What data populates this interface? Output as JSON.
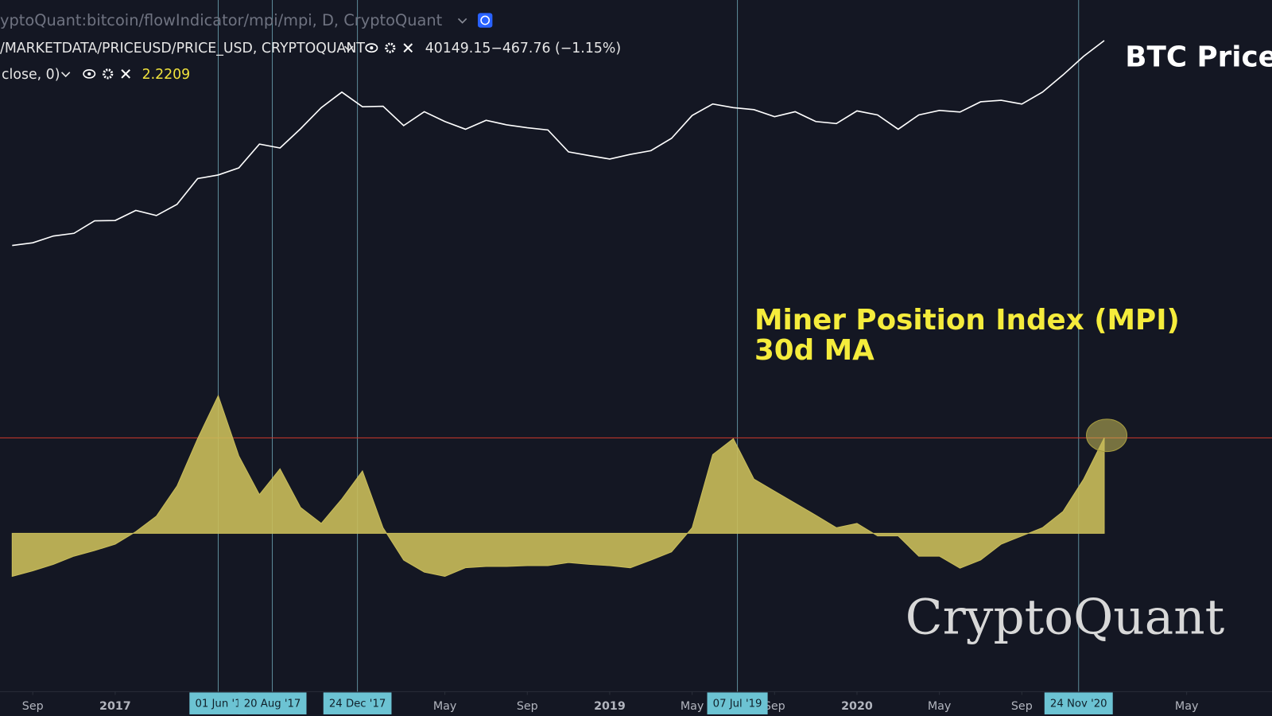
{
  "header": {
    "source": "yptoQuant:bitcoin/flowIndicator/mpi/mpi, D, CryptoQuant",
    "price_source": "/MARKETDATA/PRICEUSD/PRICE_USD, CRYPTOQUANT",
    "change": "−467.76 (−1.15%)",
    "indicator_args": "close, 0)"
  },
  "chart_data": {
    "type": "line",
    "x": [
      "2016-08",
      "2016-09",
      "2016-10",
      "2016-11",
      "2016-12",
      "2017-01",
      "2017-02",
      "2017-03",
      "2017-04",
      "2017-05",
      "2017-06",
      "2017-07",
      "2017-08",
      "2017-09",
      "2017-10",
      "2017-11",
      "2017-12",
      "2018-01",
      "2018-02",
      "2018-03",
      "2018-04",
      "2018-05",
      "2018-06",
      "2018-07",
      "2018-08",
      "2018-09",
      "2018-10",
      "2018-11",
      "2018-12",
      "2019-01",
      "2019-02",
      "2019-03",
      "2019-04",
      "2019-05",
      "2019-06",
      "2019-07",
      "2019-08",
      "2019-09",
      "2019-10",
      "2019-11",
      "2019-12",
      "2020-01",
      "2020-02",
      "2020-03",
      "2020-04",
      "2020-05",
      "2020-06",
      "2020-07",
      "2020-08",
      "2020-09",
      "2020-10",
      "2020-11",
      "2020-12",
      "2021-01"
    ],
    "series": [
      {
        "name": "BTC Price",
        "color": "#ffffff",
        "axis": "y",
        "values": [
          575,
          608,
          700,
          740,
          960,
          965,
          1190,
          1070,
          1350,
          2300,
          2480,
          2870,
          4700,
          4340,
          6470,
          10000,
          13800,
          10200,
          10300,
          6900,
          9200,
          7500,
          6400,
          7700,
          7000,
          6600,
          6300,
          4000,
          3700,
          3450,
          3800,
          4100,
          5300,
          8500,
          10800,
          10000,
          9600,
          8300,
          9200,
          7500,
          7200,
          9350,
          8600,
          6400,
          8600,
          9450,
          9140,
          11300,
          11650,
          10780,
          13800,
          19700,
          29000,
          40149.15
        ]
      },
      {
        "name": "Miner Position Index (MPI)",
        "color": "#c9bd5a",
        "axis": "y2",
        "fill": true,
        "values": [
          -1.0,
          -0.87,
          -0.72,
          -0.53,
          -0.4,
          -0.25,
          0.04,
          0.4,
          1.1,
          2.2,
          3.2,
          1.8,
          0.9,
          1.5,
          0.6,
          0.23,
          0.8,
          1.45,
          0.13,
          -0.62,
          -0.9,
          -1.0,
          -0.8,
          -0.77,
          -0.77,
          -0.75,
          -0.75,
          -0.68,
          -0.72,
          -0.75,
          -0.8,
          -0.62,
          -0.43,
          0.13,
          1.83,
          2.2,
          1.26,
          0.98,
          0.7,
          0.42,
          0.13,
          0.23,
          -0.06,
          -0.06,
          -0.53,
          -0.53,
          -0.81,
          -0.62,
          -0.25,
          -0.06,
          0.13,
          0.51,
          1.26,
          2.2209
        ]
      }
    ],
    "ylim": [
      400,
      80000
    ],
    "log_scale": true,
    "y2lim": [
      -2,
      3.5
    ],
    "xticks": [
      {
        "value": "2016-09",
        "label": "Sep"
      },
      {
        "value": "2017-01",
        "label": "2017"
      },
      {
        "value": "2018-05",
        "label": "May"
      },
      {
        "value": "2018-09",
        "label": "Sep"
      },
      {
        "value": "2019-01",
        "label": "2019"
      },
      {
        "value": "2019-05",
        "label": "May"
      },
      {
        "value": "2019-09",
        "label": "Sep"
      },
      {
        "value": "2020-01",
        "label": "2020"
      },
      {
        "value": "2020-05",
        "label": "May"
      },
      {
        "value": "2020-09",
        "label": "Sep"
      },
      {
        "value": "2021-05",
        "label": "May"
      }
    ],
    "highlight_dates": [
      {
        "value": "2017-06-01",
        "label": "01 Jun '1"
      },
      {
        "value": "2017-08-20",
        "label": "20 Aug '17"
      },
      {
        "value": "2017-12-24",
        "label": "24 Dec '17"
      },
      {
        "value": "2019-07-07",
        "label": "07 Jul '19"
      },
      {
        "value": "2020-11-24",
        "label": "24 Nov '20"
      }
    ],
    "reference_line": {
      "value": 2.22,
      "color": "#d03a2c"
    },
    "annotations": [
      "30d MA"
    ],
    "watermark": "CryptoQuant"
  }
}
